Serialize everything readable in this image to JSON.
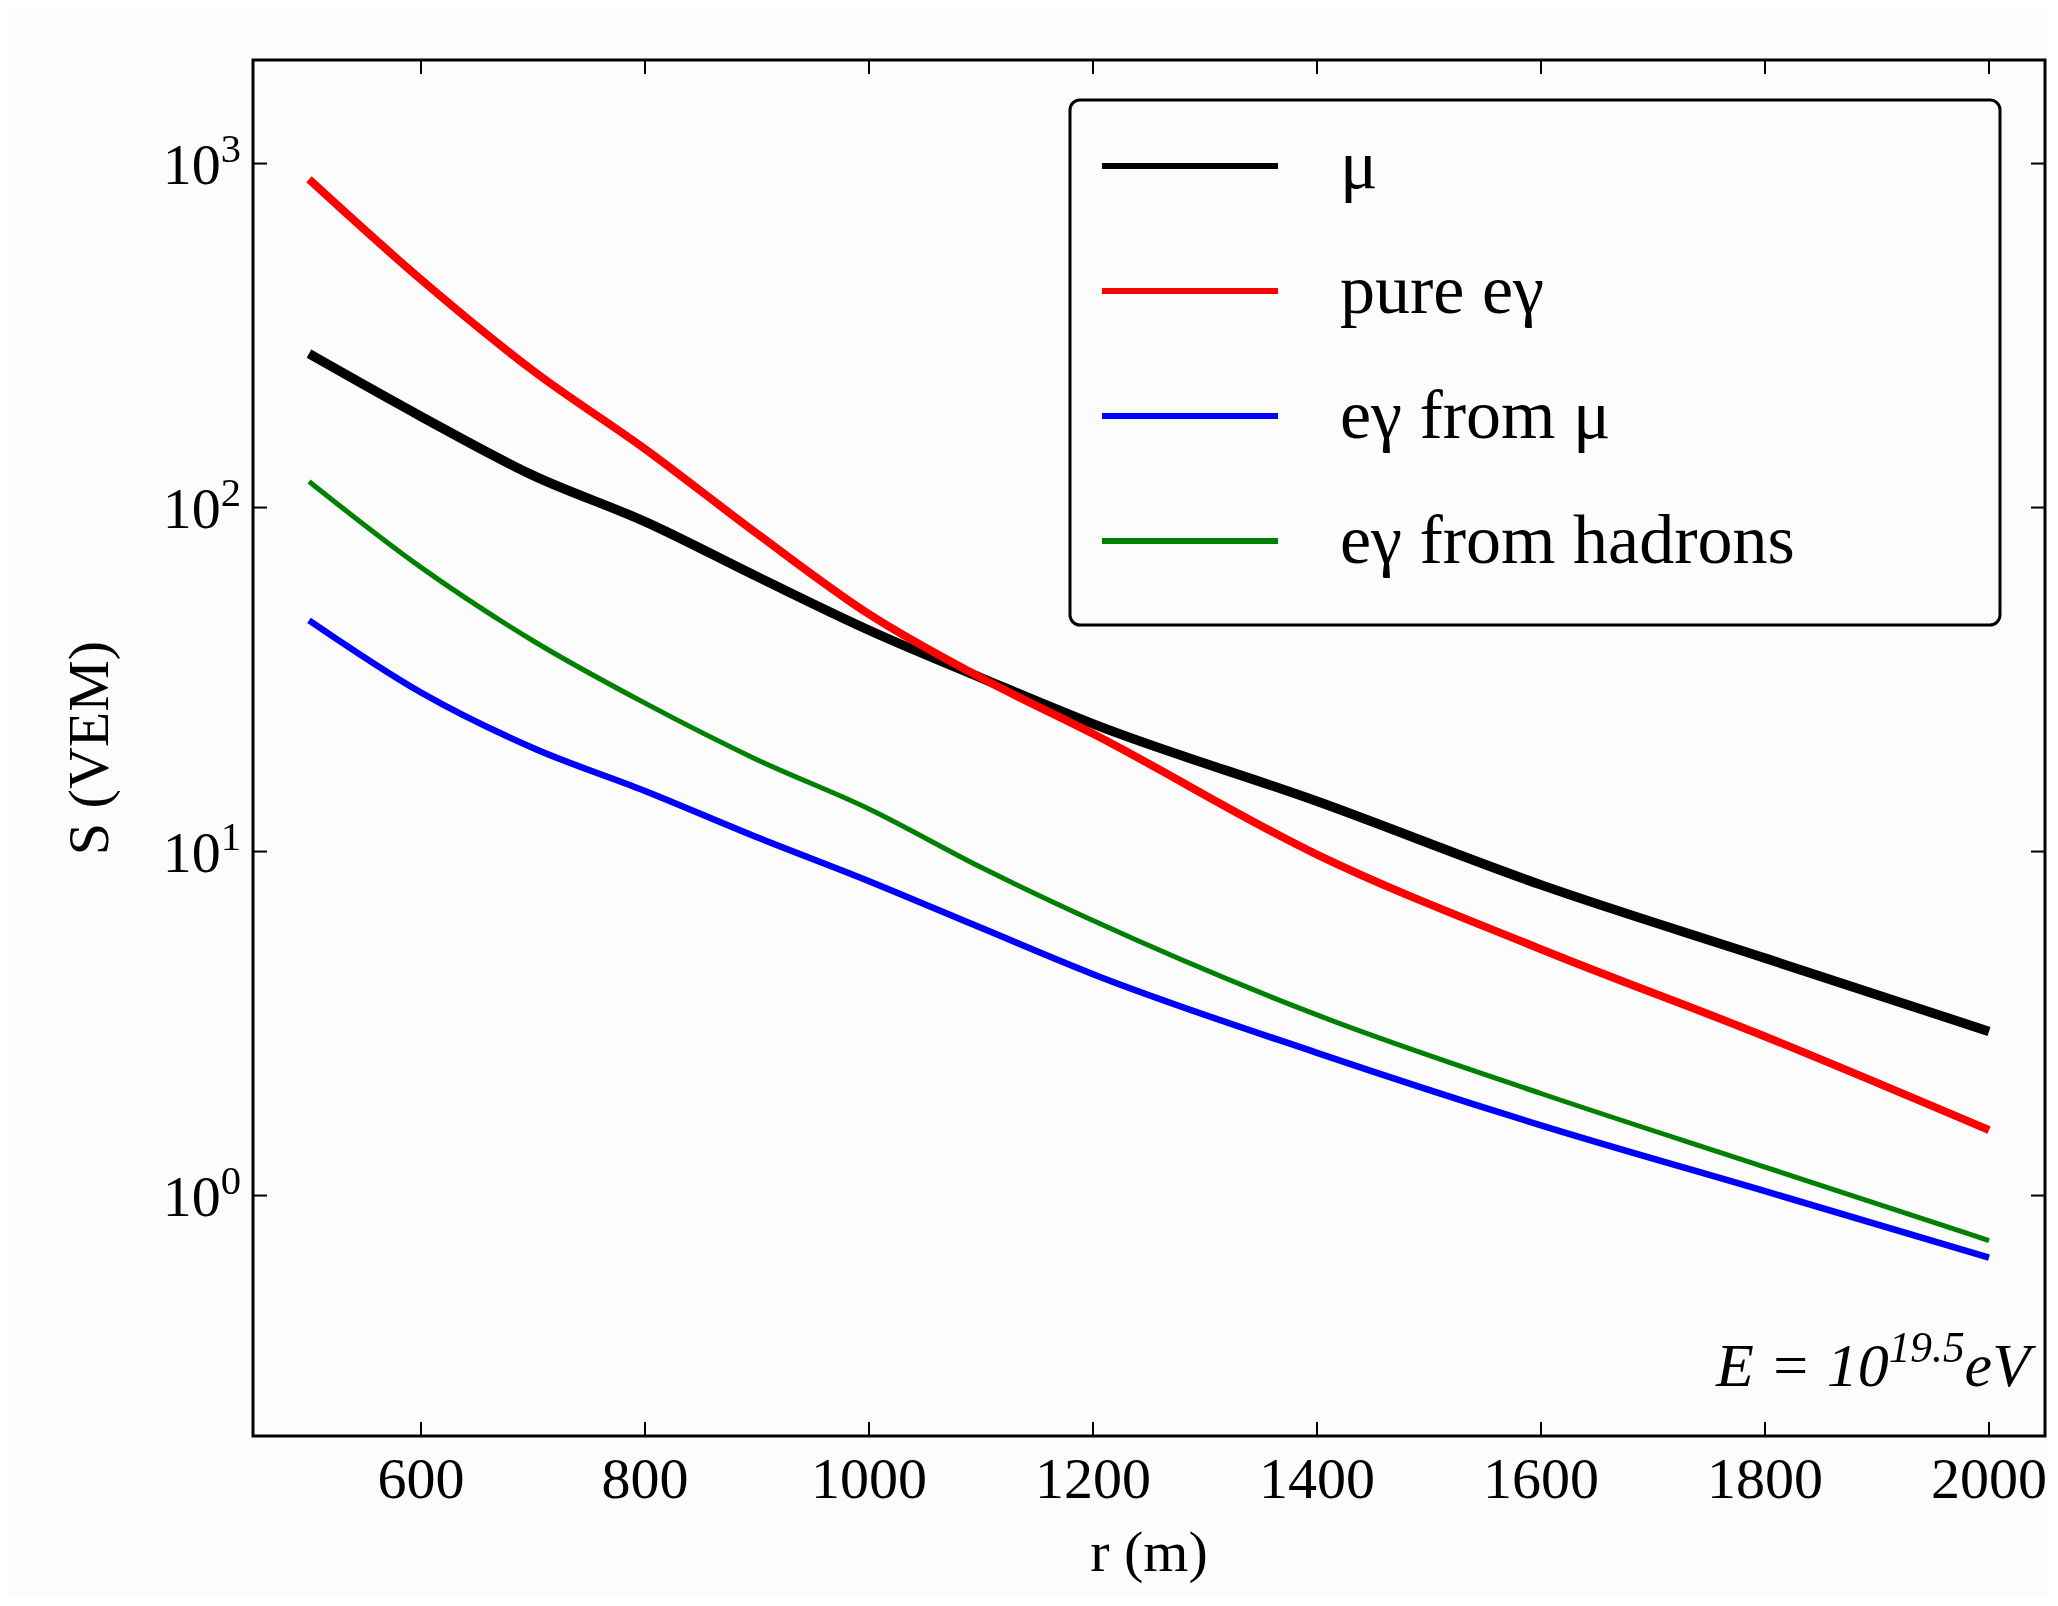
{
  "chart_data": {
    "type": "line",
    "xlabel": "r (m)",
    "ylabel": "S (VEM)",
    "log": "y",
    "xlim": [
      450,
      2050
    ],
    "xticks": [
      600,
      800,
      1000,
      1200,
      1400,
      1600,
      1800,
      2000
    ],
    "ylim": [
      0.2,
      2000
    ],
    "yticks": [
      {
        "value": 1,
        "label": "10$^{0}$"
      },
      {
        "value": 10,
        "label": "10$^{1}$"
      },
      {
        "value": 100,
        "label": "10$^{2}$"
      },
      {
        "value": 1000,
        "label": "10$^{3}$"
      }
    ],
    "grid": false,
    "legend": "top right",
    "line_style": "solid",
    "marker": "none",
    "x": [
      500,
      600,
      700,
      800,
      900,
      1000,
      1100,
      1200,
      1400,
      1600,
      1800,
      2000
    ],
    "series": [
      {
        "name": "μ",
        "color": "#000000",
        "values": [
          280,
          184,
          124,
          91,
          63,
          44,
          32,
          23.5,
          14,
          8,
          4.9,
          3.0
        ]
      },
      {
        "name": "pure eγ",
        "color": "#ff0000",
        "values": [
          900,
          460,
          250,
          148,
          84,
          49,
          32,
          22,
          9.8,
          5.2,
          2.9,
          1.55
        ]
      },
      {
        "name": "eγ from μ",
        "color": "#0000ff",
        "values": [
          47,
          29,
          20,
          15,
          11,
          8.2,
          6,
          4.4,
          2.6,
          1.6,
          1.03,
          0.66
        ]
      },
      {
        "name": "eγ from hadrons",
        "color": "#008000",
        "values": [
          119,
          67,
          41,
          27,
          18.5,
          13.3,
          9,
          6.3,
          3.35,
          1.98,
          1.21,
          0.74
        ]
      }
    ],
    "annotations": [
      "E = 10$^{19.5}$eV"
    ]
  }
}
